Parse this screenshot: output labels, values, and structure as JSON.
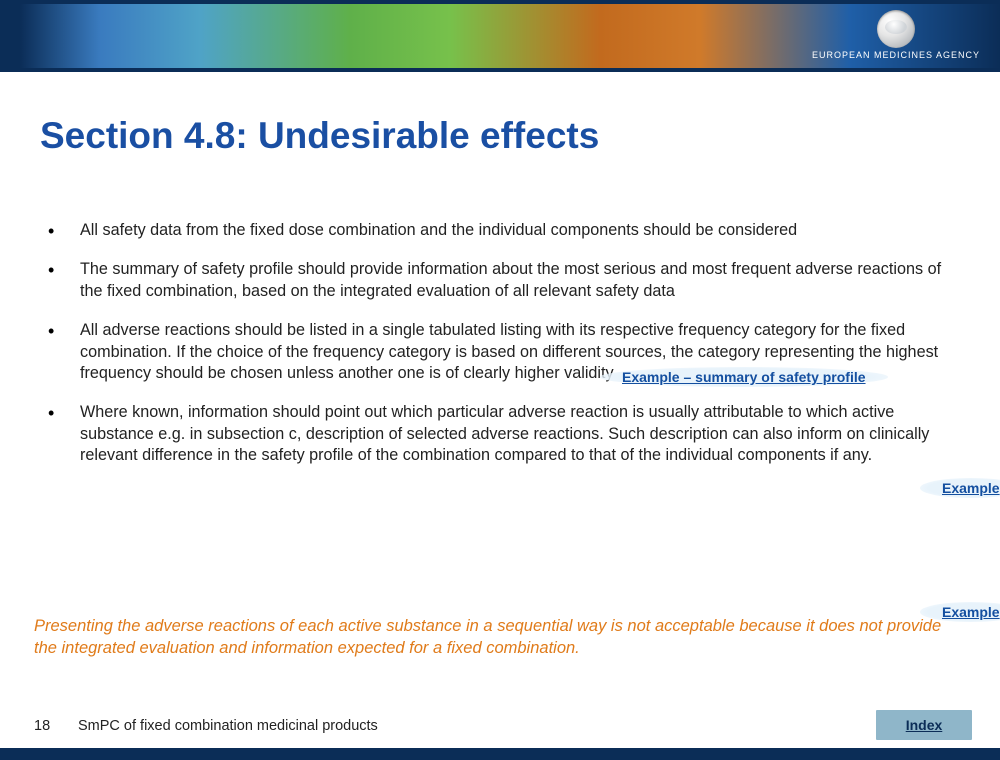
{
  "header": {
    "agency_name": "EUROPEAN MEDICINES AGENCY"
  },
  "title": "Section 4.8: Undesirable effects",
  "bullets": [
    "All safety data from the fixed dose combination and the individual components should be considered",
    "The summary of safety profile should provide information about the most serious and most frequent adverse reactions of the fixed combination, based on the integrated evaluation of all relevant safety data",
    "All adverse reactions should be listed in a single tabulated listing with its respective frequency category for the fixed combination. If the choice of the frequency category is based on different sources, the category representing the highest frequency should be chosen unless another one is of clearly higher validity",
    "Where known, information should point out which particular adverse reaction is usually attributable to which active substance e.g. in subsection c, description of selected adverse reactions. Such description can also inform on clinically relevant difference in the safety profile of the combination compared to that of the individual components if any."
  ],
  "links": {
    "example_summary": "Example – summary of safety profile",
    "example2": "Example",
    "example3": "Example"
  },
  "note": "Presenting the adverse reactions of each active substance in a sequential way is not acceptable because it does not provide the integrated evaluation and information expected for a fixed combination.",
  "footer": {
    "page_number": "18",
    "doc_title": "SmPC of fixed combination medicinal products",
    "index_label": "Index"
  },
  "colors": {
    "title_color": "#1a4fa3",
    "body_text": "#222222",
    "link_color": "#144fa0",
    "note_color": "#e07b1a",
    "footer_bar": "#0b2d57",
    "index_bg": "#8fb6c9"
  }
}
